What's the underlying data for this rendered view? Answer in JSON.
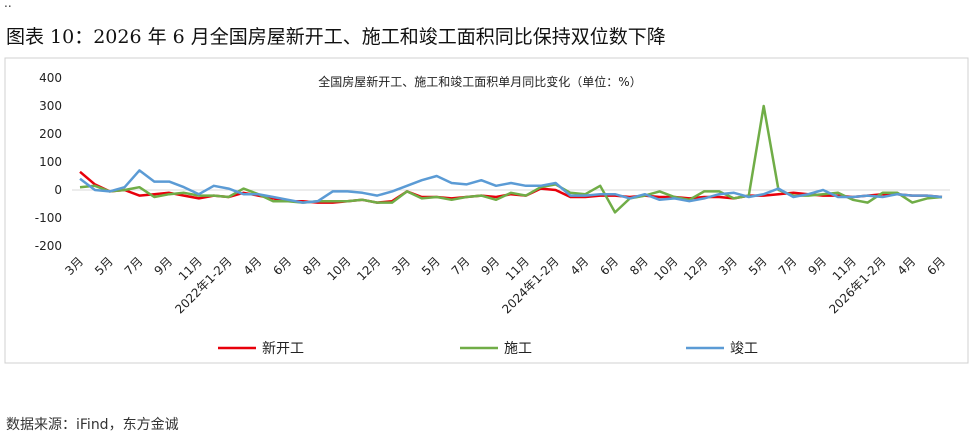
{
  "top_mark": "..",
  "caption": "图表 10：2026 年 6 月全国房屋新开工、施工和竣工面积同比保持双位数下降",
  "source": "数据来源：iFind，东方金诚",
  "chart_data": {
    "type": "line",
    "title": "全国房屋新开工、施工和竣工面积单月同比变化（单位：%）",
    "categories": [
      "3月",
      null,
      "5月",
      null,
      "7月",
      null,
      "9月",
      null,
      "11月",
      null,
      "2022年1-2月",
      null,
      "4月",
      null,
      "6月",
      null,
      "8月",
      null,
      "10月",
      null,
      "12月",
      null,
      "3月",
      null,
      "5月",
      null,
      "7月",
      null,
      "9月",
      null,
      "11月",
      null,
      "2024年1-2月",
      null,
      "4月",
      null,
      "6月",
      null,
      "8月",
      null,
      "10月",
      null,
      "12月",
      null,
      "3月",
      null,
      "5月",
      null,
      "7月",
      null,
      "9月",
      null,
      "11月",
      null,
      "2026年1-2月",
      null,
      "4月",
      null,
      "6月"
    ],
    "series": [
      {
        "name": "新开工",
        "color": "#e8000b",
        "values": [
          65,
          20,
          -5,
          0,
          -20,
          -15,
          -10,
          -20,
          -30,
          -20,
          -25,
          -10,
          -20,
          -30,
          -40,
          -40,
          -45,
          -45,
          -40,
          -35,
          -45,
          -40,
          -5,
          -25,
          -25,
          -30,
          -25,
          -20,
          -25,
          -15,
          -20,
          5,
          0,
          -25,
          -25,
          -20,
          -20,
          -25,
          -20,
          -25,
          -25,
          -30,
          -25,
          -25,
          -30,
          -20,
          -20,
          -15,
          -10,
          -15,
          -20,
          -20,
          -25,
          -20,
          -15,
          -15,
          -20,
          -20,
          -25
        ]
      },
      {
        "name": "施工",
        "color": "#70ad47",
        "values": [
          10,
          15,
          -5,
          0,
          10,
          -25,
          -15,
          -10,
          -20,
          -20,
          -25,
          5,
          -15,
          -40,
          -40,
          -45,
          -40,
          -40,
          -40,
          -35,
          -45,
          -45,
          -5,
          -30,
          -25,
          -35,
          -25,
          -20,
          -35,
          -10,
          -20,
          10,
          20,
          -10,
          -15,
          15,
          -80,
          -30,
          -20,
          -5,
          -25,
          -35,
          -5,
          -5,
          -30,
          -20,
          300,
          0,
          -20,
          -20,
          -15,
          -10,
          -35,
          -45,
          -10,
          -10,
          -45,
          -30,
          -25
        ]
      },
      {
        "name": "竣工",
        "color": "#5b9bd5",
        "values": [
          40,
          0,
          -5,
          10,
          70,
          30,
          30,
          10,
          -15,
          15,
          5,
          -15,
          -15,
          -25,
          -35,
          -45,
          -40,
          -5,
          -5,
          -10,
          -20,
          -5,
          15,
          35,
          50,
          25,
          20,
          35,
          15,
          25,
          15,
          15,
          25,
          -20,
          -20,
          -15,
          -15,
          -30,
          -15,
          -35,
          -30,
          -40,
          -30,
          -15,
          -10,
          -25,
          -15,
          5,
          -25,
          -15,
          0,
          -25,
          -25,
          -20,
          -25,
          -15,
          -20,
          -20,
          -25
        ]
      }
    ],
    "ylim": [
      -200,
      400
    ],
    "yticks": [
      -200,
      -100,
      0,
      100,
      200,
      300,
      400
    ],
    "legend": "bottom"
  }
}
